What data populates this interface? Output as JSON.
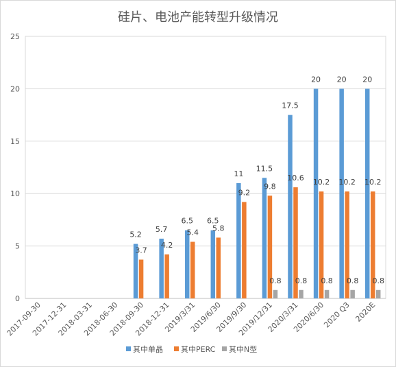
{
  "chart_data": {
    "type": "bar",
    "title": "硅片、电池产能转型升级情况",
    "xlabel": "",
    "ylabel": "",
    "ylim": [
      0,
      25
    ],
    "yticks": [
      0,
      5,
      10,
      15,
      20,
      25
    ],
    "grid": true,
    "legend_position": "bottom",
    "categories": [
      "2017-09-30",
      "2017-12-31",
      "2018-03-31",
      "2018-06-30",
      "2018-09-30",
      "2018-12-31",
      "2019/3/31",
      "2019/6/30",
      "2019/9/30",
      "2019/12/31",
      "2020/3/31",
      "2020/6/30",
      "2020 Q3",
      "2020E"
    ],
    "series": [
      {
        "name": "其中单晶",
        "color": "#5b9bd5",
        "values": [
          null,
          null,
          null,
          null,
          5.2,
          5.7,
          6.5,
          6.5,
          11,
          11.5,
          17.5,
          20,
          20,
          20
        ]
      },
      {
        "name": "其中PERC",
        "color": "#ed7d31",
        "values": [
          null,
          null,
          null,
          null,
          3.7,
          4.2,
          5.4,
          5.8,
          9.2,
          9.8,
          10.6,
          10.2,
          10.2,
          10.2
        ]
      },
      {
        "name": "其中N型",
        "color": "#a5a5a5",
        "values": [
          null,
          null,
          null,
          null,
          null,
          null,
          null,
          null,
          null,
          0.8,
          0.8,
          0.8,
          0.8,
          0.8
        ]
      }
    ]
  }
}
